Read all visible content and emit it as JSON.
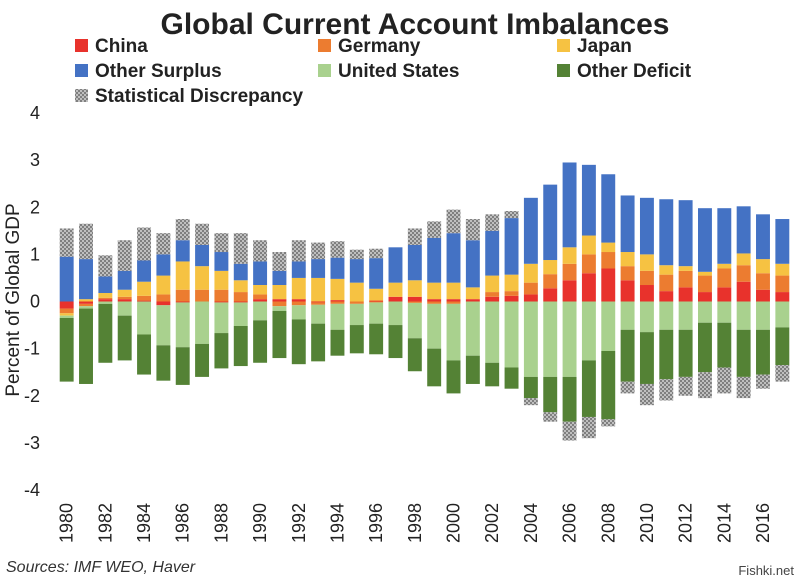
{
  "chart_data": {
    "type": "bar",
    "stacked": true,
    "title": "Global Current Account Imbalances",
    "ylabel": "Percent of Global GDP",
    "xlabel": "",
    "ylim": [
      -4,
      4
    ],
    "yticks": [
      4,
      3,
      2,
      1,
      0,
      -1,
      -2,
      -3,
      -4
    ],
    "x_tick_labels": [
      "1980",
      "1982",
      "1984",
      "1986",
      "1988",
      "1990",
      "1992",
      "1994",
      "1996",
      "1998",
      "2000",
      "2002",
      "2004",
      "2006",
      "2008",
      "2010",
      "2012",
      "2014",
      "2016"
    ],
    "categories": [
      "1980",
      "1981",
      "1982",
      "1983",
      "1984",
      "1985",
      "1986",
      "1987",
      "1988",
      "1989",
      "1990",
      "1991",
      "1992",
      "1993",
      "1994",
      "1995",
      "1996",
      "1997",
      "1998",
      "1999",
      "2000",
      "2001",
      "2002",
      "2003",
      "2004",
      "2005",
      "2006",
      "2007",
      "2008",
      "2009",
      "2010",
      "2011",
      "2012",
      "2013",
      "2014",
      "2015",
      "2016",
      "2017"
    ],
    "legend_position": "top",
    "grid": false,
    "series": [
      {
        "name": "China",
        "color": "#e8322c",
        "values": [
          -0.15,
          -0.05,
          0.05,
          0.05,
          0.02,
          -0.08,
          -0.02,
          0.0,
          -0.02,
          -0.02,
          0.05,
          0.05,
          0.05,
          -0.02,
          0.03,
          0.0,
          0.02,
          0.1,
          0.1,
          0.05,
          0.05,
          0.05,
          0.1,
          0.12,
          0.15,
          0.28,
          0.45,
          0.6,
          0.7,
          0.45,
          0.35,
          0.22,
          0.3,
          0.2,
          0.3,
          0.42,
          0.25,
          0.2
        ]
      },
      {
        "name": "Germany",
        "color": "#ec7c30",
        "values": [
          -0.1,
          -0.05,
          0.03,
          0.05,
          0.1,
          0.15,
          0.25,
          0.25,
          0.25,
          0.2,
          0.1,
          -0.1,
          -0.08,
          -0.05,
          -0.05,
          -0.05,
          -0.02,
          0.0,
          -0.03,
          -0.05,
          -0.05,
          0.0,
          0.1,
          0.1,
          0.25,
          0.3,
          0.35,
          0.4,
          0.35,
          0.3,
          0.3,
          0.35,
          0.35,
          0.35,
          0.4,
          0.35,
          0.35,
          0.35
        ]
      },
      {
        "name": "Japan",
        "color": "#f6c242",
        "values": [
          -0.05,
          0.05,
          0.1,
          0.15,
          0.3,
          0.4,
          0.6,
          0.5,
          0.4,
          0.25,
          0.2,
          0.3,
          0.45,
          0.5,
          0.45,
          0.4,
          0.25,
          0.3,
          0.35,
          0.35,
          0.35,
          0.25,
          0.35,
          0.35,
          0.4,
          0.3,
          0.35,
          0.4,
          0.2,
          0.3,
          0.35,
          0.2,
          0.1,
          0.08,
          0.1,
          0.25,
          0.3,
          0.25
        ]
      },
      {
        "name": "Other Surplus",
        "color": "#4472c4",
        "values": [
          0.95,
          0.85,
          0.35,
          0.4,
          0.45,
          0.45,
          0.45,
          0.45,
          0.4,
          0.35,
          0.5,
          0.3,
          0.35,
          0.4,
          0.45,
          0.5,
          0.65,
          0.75,
          0.75,
          0.95,
          1.05,
          1.0,
          0.95,
          1.2,
          1.4,
          1.6,
          1.8,
          1.5,
          1.45,
          1.2,
          1.2,
          1.4,
          1.4,
          1.35,
          1.18,
          1.0,
          0.95,
          0.95
        ]
      },
      {
        "name": "United States",
        "color": "#a9d18e",
        "values": [
          -0.05,
          -0.05,
          -0.05,
          -0.3,
          -0.7,
          -0.85,
          -0.95,
          -0.9,
          -0.65,
          -0.5,
          -0.4,
          -0.1,
          -0.3,
          -0.4,
          -0.55,
          -0.45,
          -0.45,
          -0.5,
          -0.75,
          -0.95,
          -1.2,
          -1.15,
          -1.3,
          -1.4,
          -1.6,
          -1.6,
          -1.6,
          -1.25,
          -1.05,
          -0.6,
          -0.65,
          -0.6,
          -0.6,
          -0.45,
          -0.45,
          -0.6,
          -0.6,
          -0.55
        ]
      },
      {
        "name": "Other Deficit",
        "color": "#548235",
        "values": [
          -1.35,
          -1.6,
          -1.25,
          -0.95,
          -0.85,
          -0.75,
          -0.8,
          -0.7,
          -0.75,
          -0.85,
          -0.9,
          -1.0,
          -0.95,
          -0.8,
          -0.55,
          -0.6,
          -0.65,
          -0.7,
          -0.7,
          -0.8,
          -0.7,
          -0.6,
          -0.5,
          -0.45,
          -0.45,
          -0.75,
          -0.95,
          -1.2,
          -1.45,
          -1.1,
          -1.1,
          -1.05,
          -1.0,
          -1.05,
          -0.95,
          -1.0,
          -0.95,
          -0.8
        ]
      },
      {
        "name": "Statistical Discrepancy",
        "color": "#a6a6a6",
        "values": [
          0.6,
          0.75,
          0.45,
          0.65,
          0.7,
          0.45,
          0.45,
          0.45,
          0.4,
          0.65,
          0.45,
          0.4,
          0.45,
          0.35,
          0.35,
          0.2,
          0.2,
          0.0,
          0.35,
          0.35,
          0.5,
          0.45,
          0.35,
          0.15,
          -0.15,
          -0.2,
          -0.4,
          -0.45,
          -0.15,
          -0.25,
          -0.45,
          -0.45,
          -0.4,
          -0.55,
          -0.55,
          -0.45,
          -0.3,
          -0.35
        ]
      }
    ]
  },
  "source_text": "Sources: IMF WEO, Haver",
  "watermark_text": "Fishki.net"
}
